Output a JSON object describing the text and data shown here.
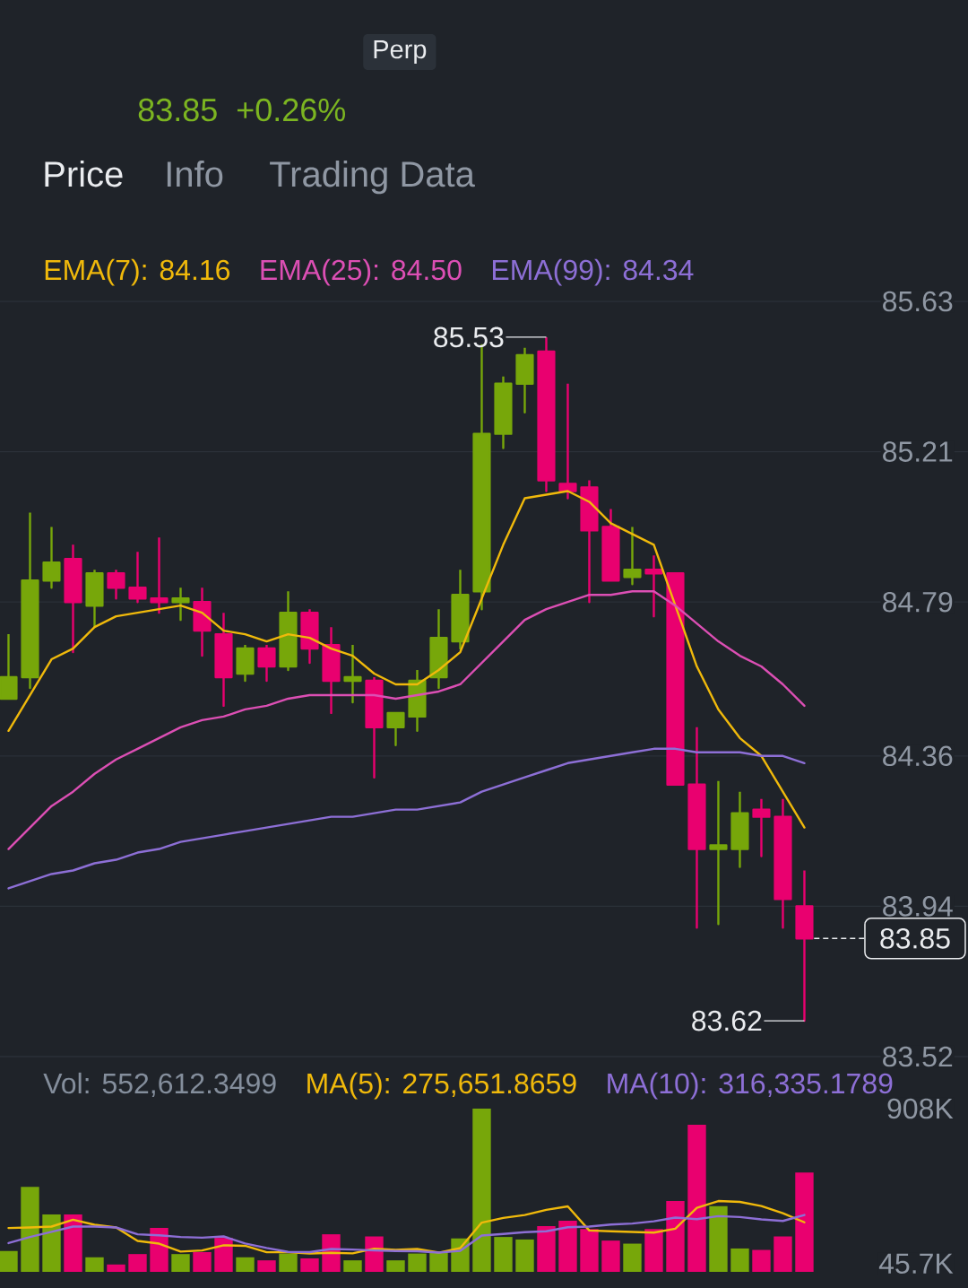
{
  "chart_data": [
    {
      "type": "candlestick",
      "categories": [
        null,
        null,
        null,
        null,
        null,
        null,
        null,
        null,
        null,
        null,
        null,
        null,
        null,
        null,
        null,
        null,
        null,
        null,
        null,
        null,
        null,
        null,
        null,
        null,
        null,
        null,
        null,
        null,
        null,
        null,
        null,
        null,
        null,
        null,
        null,
        null,
        null,
        null
      ],
      "ohlc": [
        [
          84.52,
          84.7,
          84.52,
          84.58
        ],
        [
          84.58,
          85.04,
          84.55,
          84.85
        ],
        [
          84.85,
          85.0,
          84.83,
          84.9
        ],
        [
          84.91,
          84.95,
          84.65,
          84.79
        ],
        [
          84.78,
          84.88,
          84.72,
          84.87
        ],
        [
          84.87,
          84.88,
          84.8,
          84.83
        ],
        [
          84.83,
          84.93,
          84.79,
          84.8
        ],
        [
          84.8,
          84.97,
          84.76,
          84.79
        ],
        [
          84.79,
          84.83,
          84.74,
          84.8
        ],
        [
          84.79,
          84.83,
          84.64,
          84.71
        ],
        [
          84.7,
          84.76,
          84.5,
          84.58
        ],
        [
          84.59,
          84.67,
          84.57,
          84.66
        ],
        [
          84.66,
          84.67,
          84.57,
          84.61
        ],
        [
          84.61,
          84.82,
          84.6,
          84.76
        ],
        [
          84.76,
          84.77,
          84.62,
          84.66
        ],
        [
          84.67,
          84.72,
          84.48,
          84.57
        ],
        [
          84.57,
          84.67,
          84.51,
          84.58
        ],
        [
          84.57,
          84.58,
          84.3,
          84.44
        ],
        [
          84.44,
          84.48,
          84.39,
          84.48
        ],
        [
          84.47,
          84.6,
          84.43,
          84.57
        ],
        [
          84.58,
          84.77,
          84.55,
          84.69
        ],
        [
          84.68,
          84.88,
          84.66,
          84.81
        ],
        [
          84.82,
          85.51,
          84.77,
          85.26
        ],
        [
          85.26,
          85.42,
          85.22,
          85.4
        ],
        [
          85.4,
          85.5,
          85.32,
          85.48
        ],
        [
          85.49,
          85.53,
          85.1,
          85.13
        ],
        [
          85.12,
          85.4,
          85.08,
          85.1
        ],
        [
          85.11,
          85.13,
          84.79,
          84.99
        ],
        [
          85.0,
          85.05,
          84.85,
          84.85
        ],
        [
          84.86,
          85.0,
          84.84,
          84.88
        ],
        [
          84.88,
          84.92,
          84.75,
          84.87
        ],
        [
          84.87,
          84.87,
          84.28,
          84.28
        ],
        [
          84.28,
          84.44,
          83.88,
          84.1
        ],
        [
          84.1,
          84.29,
          83.89,
          84.11
        ],
        [
          84.1,
          84.26,
          84.05,
          84.2
        ],
        [
          84.21,
          84.24,
          84.08,
          84.19
        ],
        [
          84.19,
          84.24,
          83.88,
          83.96
        ],
        [
          83.94,
          84.04,
          83.62,
          83.85
        ]
      ],
      "colors": [
        "#77a70a",
        "#77a70a",
        "#77a70a",
        "#e9006f",
        "#77a70a",
        "#e9006f",
        "#e9006f",
        "#e9006f",
        "#77a70a",
        "#e9006f",
        "#e9006f",
        "#77a70a",
        "#e9006f",
        "#77a70a",
        "#e9006f",
        "#e9006f",
        "#77a70a",
        "#e9006f",
        "#77a70a",
        "#77a70a",
        "#77a70a",
        "#77a70a",
        "#77a70a",
        "#77a70a",
        "#77a70a",
        "#e9006f",
        "#e9006f",
        "#e9006f",
        "#e9006f",
        "#77a70a",
        "#e9006f",
        "#e9006f",
        "#e9006f",
        "#77a70a",
        "#77a70a",
        "#e9006f",
        "#e9006f",
        "#e9006f"
      ],
      "series": [
        {
          "type": "line",
          "name": "EMA(7): 84.16",
          "color": "#f0b90b",
          "values": [
            84.43,
            84.53,
            84.63,
            84.66,
            84.72,
            84.75,
            84.76,
            84.77,
            84.78,
            84.76,
            84.71,
            84.7,
            84.68,
            84.7,
            84.69,
            84.66,
            84.64,
            84.59,
            84.56,
            84.56,
            84.6,
            84.65,
            84.8,
            84.95,
            85.08,
            85.09,
            85.1,
            85.07,
            85.01,
            84.98,
            84.95,
            84.78,
            84.61,
            84.49,
            84.41,
            84.36,
            84.26,
            84.16
          ]
        },
        {
          "type": "line",
          "name": "EMA(25): 84.50",
          "color": "#dc4fb4",
          "values": [
            84.1,
            84.16,
            84.22,
            84.26,
            84.31,
            84.35,
            84.38,
            84.41,
            84.44,
            84.46,
            84.47,
            84.49,
            84.5,
            84.52,
            84.53,
            84.53,
            84.53,
            84.53,
            84.52,
            84.53,
            84.54,
            84.56,
            84.62,
            84.68,
            84.74,
            84.77,
            84.79,
            84.81,
            84.81,
            84.82,
            84.82,
            84.78,
            84.73,
            84.68,
            84.64,
            84.61,
            84.56,
            84.5
          ]
        },
        {
          "type": "line",
          "name": "EMA(99): 84.34",
          "color": "#8d6fd6",
          "values": [
            83.99,
            84.01,
            84.03,
            84.04,
            84.06,
            84.07,
            84.09,
            84.1,
            84.12,
            84.13,
            84.14,
            84.15,
            84.16,
            84.17,
            84.18,
            84.19,
            84.19,
            84.2,
            84.21,
            84.21,
            84.22,
            84.23,
            84.26,
            84.28,
            84.3,
            84.32,
            84.34,
            84.35,
            84.36,
            84.37,
            84.38,
            84.38,
            84.37,
            84.37,
            84.37,
            84.36,
            84.36,
            84.34
          ]
        }
      ],
      "ylim": [
        83.52,
        85.63
      ],
      "yticks": [
        85.63,
        85.21,
        84.79,
        84.36,
        83.94,
        83.52
      ],
      "grid": "y",
      "legend": "top",
      "ref_lines": [
        {
          "axis": "y",
          "value": 83.85,
          "label": "83.85",
          "line_style": "dashed",
          "color": "#eaecef"
        }
      ],
      "annotations": [
        "Perp",
        "83.85",
        "+0.26%",
        "Price",
        "Info",
        "Trading Data",
        "85.53",
        "83.62"
      ]
    },
    {
      "type": "bar",
      "categories": [
        null,
        null,
        null,
        null,
        null,
        null,
        null,
        null,
        null,
        null,
        null,
        null,
        null,
        null,
        null,
        null,
        null,
        null,
        null,
        null,
        null,
        null,
        null,
        null,
        null,
        null,
        null,
        null,
        null,
        null,
        null,
        null,
        null,
        null,
        null,
        null,
        null,
        null
      ],
      "series": [
        {
          "type": "bar",
          "values": [
            116000,
            473000,
            319000,
            319000,
            81000,
            41000,
            99000,
            244000,
            99000,
            110000,
            189000,
            81000,
            64000,
            102000,
            75000,
            209000,
            64000,
            197000,
            64000,
            102000,
            110000,
            186000,
            908000,
            194000,
            180000,
            255000,
            284000,
            238000,
            174000,
            157000,
            238000,
            394000,
            818000,
            365000,
            130000,
            122000,
            197000,
            552612.3499
          ],
          "colors": [
            "#77a70a",
            "#77a70a",
            "#77a70a",
            "#e9006f",
            "#77a70a",
            "#e9006f",
            "#e9006f",
            "#e9006f",
            "#77a70a",
            "#e9006f",
            "#e9006f",
            "#77a70a",
            "#e9006f",
            "#77a70a",
            "#e9006f",
            "#e9006f",
            "#77a70a",
            "#e9006f",
            "#77a70a",
            "#77a70a",
            "#77a70a",
            "#77a70a",
            "#77a70a",
            "#77a70a",
            "#77a70a",
            "#e9006f",
            "#e9006f",
            "#e9006f",
            "#e9006f",
            "#77a70a",
            "#e9006f",
            "#e9006f",
            "#e9006f",
            "#77a70a",
            "#77a70a",
            "#e9006f",
            "#e9006f",
            "#e9006f"
          ]
        },
        {
          "type": "line",
          "name": "MA(5): 275,651.8659",
          "color": "#f0b90b",
          "values": [
            244000,
            247000,
            252000,
            290000,
            262000,
            247000,
            172000,
            157000,
            113000,
            119000,
            148000,
            145000,
            109000,
            109000,
            102000,
            106000,
            103000,
            129000,
            122000,
            127000,
            107000,
            132000,
            274000,
            300000,
            316000,
            345000,
            364000,
            230000,
            226000,
            222000,
            218000,
            240000,
            356000,
            394000,
            389000,
            366000,
            326000,
            275651.8659
          ]
        },
        {
          "type": "line",
          "name": "MA(10): 316,335.1789",
          "color": "#8d6fd6",
          "values": [
            160000,
            194000,
            223000,
            252000,
            252000,
            247000,
            209000,
            203000,
            194000,
            190000,
            197000,
            158000,
            133000,
            111000,
            110000,
            127000,
            124000,
            119000,
            116000,
            115000,
            107000,
            117000,
            202000,
            211000,
            221000,
            226000,
            248000,
            252000,
            263000,
            269000,
            281000,
            302000,
            293000,
            310000,
            305000,
            292000,
            283000,
            316335.1789
          ]
        }
      ],
      "ylim": [
        0,
        908000
      ],
      "yticks": [
        {
          "value": 908000,
          "label": "908K"
        },
        {
          "value": 45700,
          "label": "45.7K"
        }
      ],
      "legend": "top",
      "annotations": [
        "Vol: 552,612.3499"
      ]
    }
  ]
}
